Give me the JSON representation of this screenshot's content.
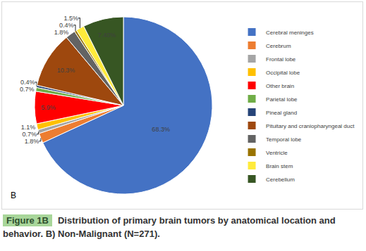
{
  "chart_data": {
    "type": "pie",
    "categories": [
      "Cerebral meninges",
      "Cerebrum",
      "Frontal lobe",
      "Occipital lobe",
      "Other brain",
      "Parietal lobe",
      "Pineal gland",
      "Pituitary and craniopharyngeal duct",
      "Temporal lobe",
      "Ventricle",
      "Brain stem",
      "Cerebellum"
    ],
    "values": [
      68.3,
      1.8,
      0.7,
      1.1,
      5.9,
      0.7,
      0.4,
      10.3,
      1.8,
      0.4,
      1.5,
      7.4
    ],
    "value_labels": [
      "68.3%",
      "1.8%",
      "0.7%",
      "1.1%",
      "5.9%",
      "0.7%",
      "0.4%",
      "10.3%",
      "1.8%",
      "0.4%",
      "1.5%",
      "7.40%"
    ],
    "colors": [
      "#4472c4",
      "#ed7d31",
      "#a5a5a5",
      "#ffc000",
      "#ff0000",
      "#70ad47",
      "#264478",
      "#9e480e",
      "#636363",
      "#997300",
      "#ffeb3b",
      "#375623"
    ],
    "data_labels": true,
    "legend": "right",
    "annotations": [
      "B"
    ],
    "caption_label": "Figure 1B",
    "caption": "Distribution of primary brain tumors by anatomical location and behavior. B) Non-Malignant (N=271)."
  }
}
